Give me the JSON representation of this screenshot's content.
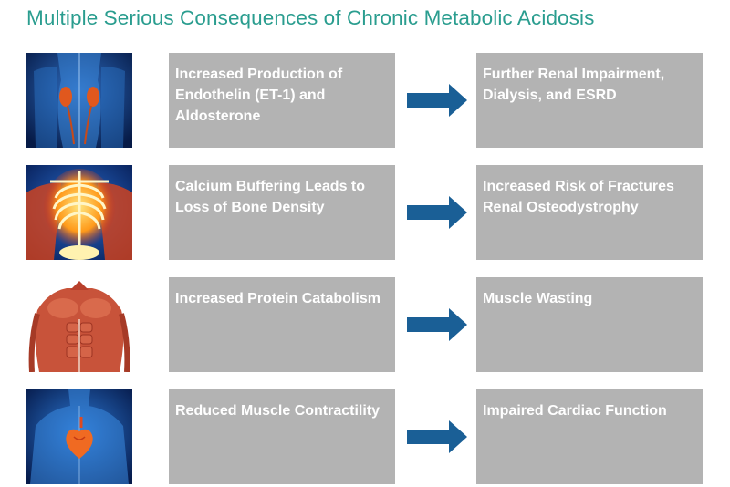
{
  "title": "Multiple Serious Consequences of Chronic Metabolic Acidosis",
  "rows": [
    {
      "image_icon": "kidneys-anatomy-icon",
      "cause": "Increased Production of Endothelin (ET-1) and Aldosterone",
      "consequence": "Further Renal Impairment, Dialysis, and ESRD"
    },
    {
      "image_icon": "skeleton-ribcage-icon",
      "cause": "Calcium Buffering Leads to Loss of Bone Density",
      "consequence": "Increased Risk of Fractures Renal Osteodystrophy"
    },
    {
      "image_icon": "muscle-torso-icon",
      "cause": "Increased Protein Catabolism",
      "consequence": "Muscle Wasting"
    },
    {
      "image_icon": "heart-anatomy-icon",
      "cause": "Reduced Muscle Contractility",
      "consequence": "Impaired Cardiac Function"
    }
  ],
  "colors": {
    "title": "#2a9d8f",
    "box_fill": "#b3b3b3",
    "box_text": "#ffffff",
    "arrow": "#1a5f96"
  }
}
